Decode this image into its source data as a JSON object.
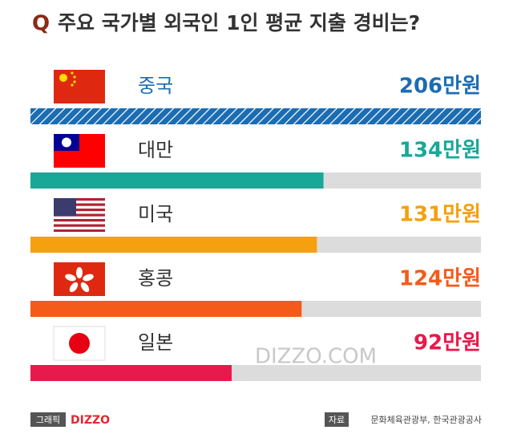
{
  "chart_data": {
    "type": "bar",
    "orientation": "horizontal",
    "question_mark": "Q",
    "title": "주요 국가별 외국인 1인 평균 지출 경비는?",
    "categories": [
      "중국",
      "대만",
      "미국",
      "홍콩",
      "일본"
    ],
    "values": [
      206,
      134,
      131,
      124,
      92
    ],
    "value_labels": [
      "206만원",
      "134만원",
      "131만원",
      "124만원",
      "92만원"
    ],
    "colors": [
      "#1b6db3",
      "#17a898",
      "#f5a00e",
      "#f45b1a",
      "#e8194b"
    ],
    "hatched": [
      true,
      false,
      false,
      false,
      false
    ],
    "xlim": [
      0,
      206
    ],
    "watermark": "DIZZO.COM",
    "credit_label": "그래픽",
    "credit": "DIZZO",
    "source_label": "자료",
    "source": "문화체육관광부, 한국관광공사"
  }
}
